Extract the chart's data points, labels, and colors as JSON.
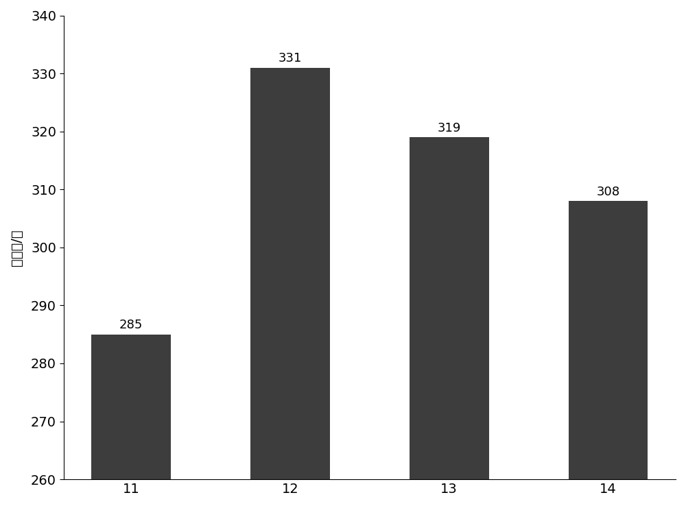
{
  "categories": [
    "11",
    "12",
    "13",
    "14"
  ],
  "values": [
    285,
    331,
    319,
    308
  ],
  "bar_color": "#3d3d3d",
  "ylabel": "诱捕量/头",
  "ylim": [
    260,
    340
  ],
  "yticks": [
    260,
    270,
    280,
    290,
    300,
    310,
    320,
    330,
    340
  ],
  "bar_width": 0.5,
  "label_fontsize": 14,
  "tick_fontsize": 14,
  "ylabel_fontsize": 14,
  "value_fontsize": 13,
  "background_color": "#ffffff"
}
